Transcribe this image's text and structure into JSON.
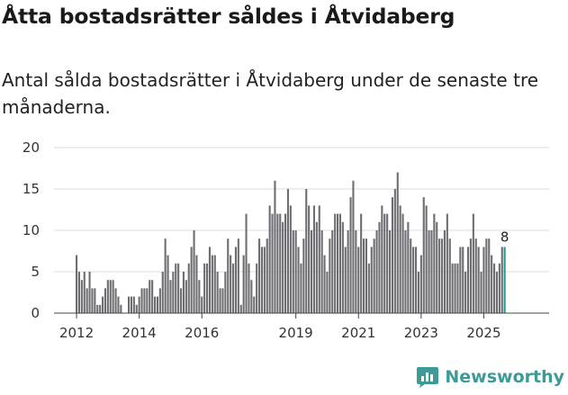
{
  "title": "Åtta bostadsrätter såldes i Åtvidaberg",
  "subtitle": "Antal sålda bostadsrätter i Åtvidaberg under de senaste tre månaderna.",
  "brand": {
    "name": "Newsworthy",
    "icon": "newsworthy-logo-icon"
  },
  "colors": {
    "bar": "#6e6d72",
    "highlight": "#1f9a93",
    "grid": "#dddddd",
    "brand": "#3d9a96"
  },
  "chart_data": {
    "type": "bar",
    "title": "Åtta bostadsrätter såldes i Åtvidaberg",
    "xlabel": "",
    "ylabel": "",
    "ylim": [
      0,
      20
    ],
    "yticks": [
      0,
      5,
      10,
      15,
      20
    ],
    "x_start": "2012-01",
    "xticks": [
      "2012",
      "2014",
      "2016",
      "2019",
      "2021",
      "2023",
      "2025"
    ],
    "values": [
      7,
      5,
      4,
      5,
      3,
      5,
      3,
      3,
      1,
      1,
      2,
      3,
      4,
      4,
      4,
      3,
      2,
      1,
      0,
      0,
      2,
      2,
      2,
      1,
      2,
      3,
      3,
      3,
      4,
      4,
      2,
      2,
      3,
      5,
      9,
      7,
      4,
      5,
      6,
      6,
      3,
      5,
      4,
      6,
      8,
      10,
      7,
      4,
      2,
      6,
      6,
      8,
      7,
      7,
      5,
      3,
      3,
      5,
      9,
      7,
      6,
      8,
      9,
      1,
      7,
      12,
      6,
      4,
      2,
      6,
      9,
      8,
      8,
      9,
      13,
      12,
      16,
      12,
      12,
      11,
      12,
      15,
      13,
      10,
      10,
      8,
      6,
      9,
      15,
      13,
      10,
      13,
      11,
      13,
      10,
      7,
      5,
      9,
      10,
      12,
      12,
      12,
      11,
      8,
      10,
      14,
      16,
      10,
      8,
      12,
      9,
      9,
      6,
      8,
      9,
      10,
      11,
      13,
      12,
      12,
      10,
      14,
      15,
      17,
      13,
      12,
      10,
      11,
      9,
      8,
      8,
      5,
      7,
      14,
      13,
      10,
      10,
      12,
      11,
      9,
      9,
      10,
      12,
      9,
      6,
      6,
      6,
      8,
      8,
      5,
      8,
      9,
      12,
      9,
      8,
      5,
      8,
      9,
      9,
      7,
      6,
      5,
      6,
      8,
      8
    ],
    "highlight_last": 1,
    "last_value_label": "8"
  }
}
